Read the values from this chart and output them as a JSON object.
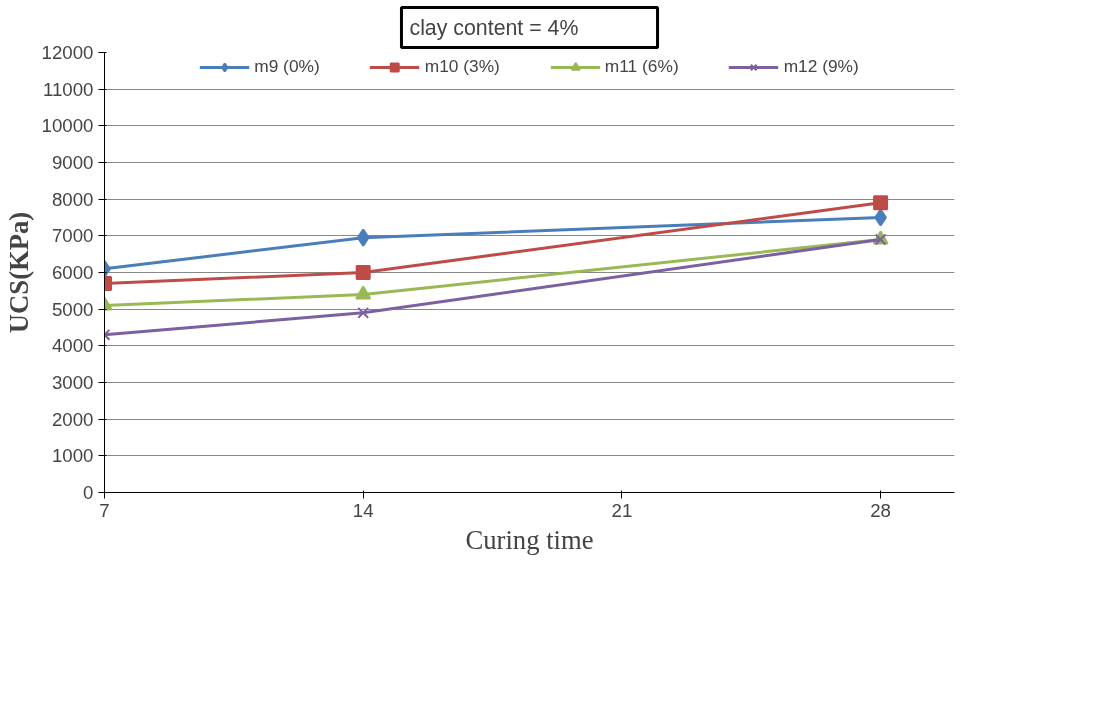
{
  "chart_data": {
    "type": "line",
    "title": "clay content = 4%",
    "xlabel": "Curing time",
    "ylabel": "UCS(KPa)",
    "x": [
      7,
      14,
      28
    ],
    "series": [
      {
        "name": "m9 (0%)",
        "color": "#4a7ebb",
        "marker": "diamond",
        "values": [
          6100,
          6950,
          7500
        ]
      },
      {
        "name": "m10 (3%)",
        "color": "#be4b48",
        "marker": "square",
        "values": [
          5700,
          6000,
          7900
        ]
      },
      {
        "name": "m11 (6%)",
        "color": "#98b954",
        "marker": "triangle",
        "values": [
          5100,
          5400,
          6900
        ]
      },
      {
        "name": "m12 (9%)",
        "color": "#7d60a0",
        "marker": "cross",
        "values": [
          4300,
          4900,
          6900
        ]
      }
    ],
    "xlim": [
      7,
      30
    ],
    "xticks": [
      7,
      14,
      21,
      28
    ],
    "ylim": [
      0,
      12000
    ],
    "yticks": [
      0,
      1000,
      2000,
      3000,
      4000,
      5000,
      6000,
      7000,
      8000,
      9000,
      10000,
      11000,
      12000
    ],
    "grid": "y",
    "legend": "top",
    "line_style": "solid"
  }
}
